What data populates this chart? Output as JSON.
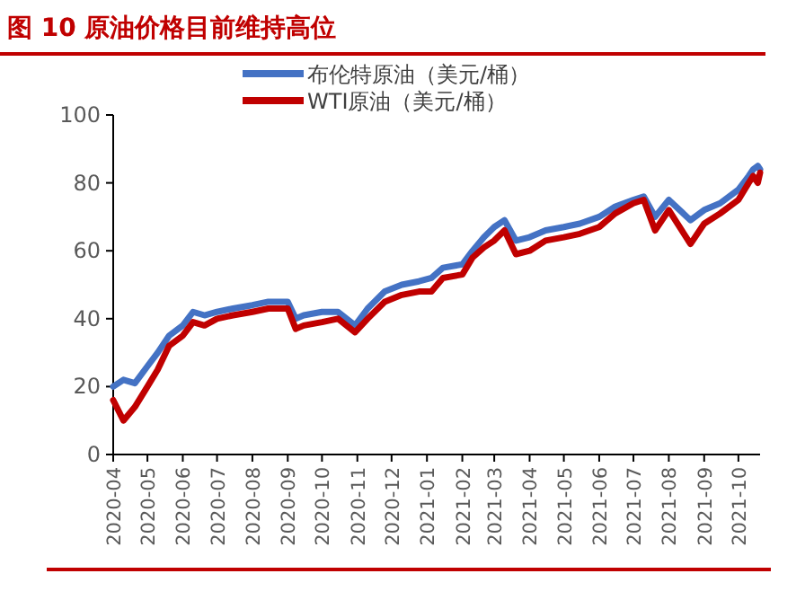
{
  "chart_data": {
    "type": "line",
    "title": "图 10 原油价格目前维持高位",
    "xlim": [
      "2020-04-01",
      "2021-10-20"
    ],
    "xticks": [
      "2020-04",
      "2020-05",
      "2020-06",
      "2020-07",
      "2020-08",
      "2020-09",
      "2020-10",
      "2020-11",
      "2020-12",
      "2021-01",
      "2021-02",
      "2021-03",
      "2021-04",
      "2021-05",
      "2021-06",
      "2021-07",
      "2021-08",
      "2021-09",
      "2021-10"
    ],
    "ylim": [
      0,
      100
    ],
    "yticks": [
      0,
      20,
      40,
      60,
      80,
      100
    ],
    "grid": false,
    "legend": "top",
    "marker": "none",
    "line_style": "solid",
    "x": [
      "2020-04-01",
      "2020-04-10",
      "2020-04-20",
      "2020-05-01",
      "2020-05-10",
      "2020-05-20",
      "2020-06-01",
      "2020-06-10",
      "2020-06-20",
      "2020-07-01",
      "2020-07-15",
      "2020-08-01",
      "2020-08-15",
      "2020-09-01",
      "2020-09-08",
      "2020-09-15",
      "2020-10-01",
      "2020-10-15",
      "2020-10-30",
      "2020-11-10",
      "2020-11-25",
      "2020-12-10",
      "2020-12-25",
      "2021-01-05",
      "2021-01-15",
      "2021-02-01",
      "2021-02-10",
      "2021-02-20",
      "2021-03-01",
      "2021-03-10",
      "2021-03-20",
      "2021-04-01",
      "2021-04-15",
      "2021-05-01",
      "2021-05-15",
      "2021-06-01",
      "2021-06-15",
      "2021-07-01",
      "2021-07-10",
      "2021-07-20",
      "2021-08-01",
      "2021-08-20",
      "2021-09-01",
      "2021-09-15",
      "2021-10-01",
      "2021-10-10",
      "2021-10-14",
      "2021-10-18",
      "2021-10-20"
    ],
    "series": [
      {
        "name": "布伦特原油（美元/桶）",
        "color": "#4472c4",
        "values": [
          20,
          22,
          21,
          26,
          30,
          35,
          38,
          42,
          41,
          42,
          43,
          44,
          45,
          45,
          40,
          41,
          42,
          42,
          38,
          43,
          48,
          50,
          51,
          52,
          55,
          56,
          60,
          64,
          67,
          69,
          63,
          64,
          66,
          67,
          68,
          70,
          73,
          75,
          76,
          70,
          75,
          69,
          72,
          74,
          78,
          82,
          84,
          85,
          84
        ]
      },
      {
        "name": "WTI原油（美元/桶）",
        "color": "#c00000",
        "values": [
          16,
          10,
          14,
          20,
          25,
          32,
          35,
          39,
          38,
          40,
          41,
          42,
          43,
          43,
          37,
          38,
          39,
          40,
          36,
          40,
          45,
          47,
          48,
          48,
          52,
          53,
          58,
          61,
          63,
          66,
          59,
          60,
          63,
          64,
          65,
          67,
          71,
          74,
          75,
          66,
          72,
          62,
          68,
          71,
          75,
          80,
          82,
          80,
          83
        ]
      }
    ]
  }
}
